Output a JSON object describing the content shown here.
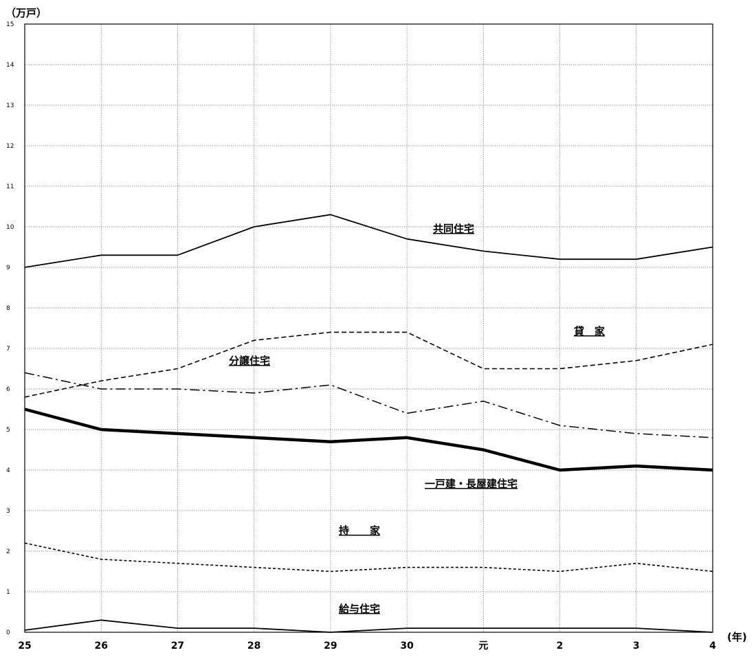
{
  "chart_data": {
    "type": "line",
    "y_unit": "（万戸）",
    "x_unit": "(年)",
    "categories": [
      "25",
      "26",
      "27",
      "28",
      "29",
      "30",
      "元",
      "2",
      "3",
      "4"
    ],
    "ylim": [
      0,
      15
    ],
    "y_ticks": [
      "0",
      "1",
      "2",
      "3",
      "4",
      "5",
      "6",
      "7",
      "8",
      "9",
      "10",
      "11",
      "12",
      "13",
      "14",
      "15"
    ],
    "grid": true,
    "series": [
      {
        "name": "共同住宅",
        "style": "solid",
        "values": [
          9.0,
          9.3,
          9.3,
          10.0,
          10.3,
          9.7,
          9.4,
          9.2,
          9.2,
          9.5
        ]
      },
      {
        "name": "貸　家",
        "style": "dashed",
        "values": [
          5.8,
          6.2,
          6.5,
          7.2,
          7.4,
          7.4,
          6.5,
          6.5,
          6.7,
          7.1
        ]
      },
      {
        "name": "分譲住宅",
        "style": "dashdot",
        "values": [
          6.4,
          6.0,
          6.0,
          5.9,
          6.1,
          5.4,
          5.7,
          5.1,
          4.9,
          4.8
        ]
      },
      {
        "name": "一戸建・長屋建住宅",
        "style": "thick",
        "values": [
          5.5,
          5.0,
          4.9,
          4.8,
          4.7,
          4.8,
          4.5,
          4.0,
          4.1,
          4.0
        ]
      },
      {
        "name": "持　　家",
        "style": "dotted",
        "values": [
          2.2,
          1.8,
          1.7,
          1.6,
          1.5,
          1.6,
          1.6,
          1.5,
          1.7,
          1.5
        ]
      },
      {
        "name": "給与住宅",
        "style": "solid",
        "values": [
          0.05,
          0.3,
          0.1,
          0.1,
          0.0,
          0.1,
          0.1,
          0.1,
          0.1,
          0.0
        ]
      }
    ]
  }
}
